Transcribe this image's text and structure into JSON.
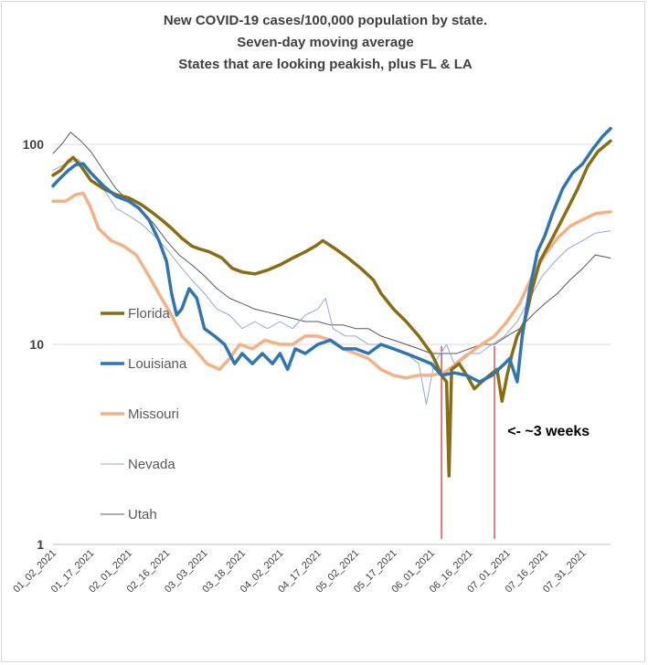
{
  "chart_data": {
    "type": "line",
    "title": [
      "New COVID-19 cases/100,000 population by state.",
      "Seven-day moving average",
      "States that are looking peakish, plus FL & LA"
    ],
    "y_scale": "log",
    "ylim": [
      1,
      130
    ],
    "y_ticks": [
      {
        "value": 1,
        "label": "1"
      },
      {
        "value": 10,
        "label": "10"
      },
      {
        "value": 100,
        "label": "100"
      }
    ],
    "x_range": [
      "01_02_2021",
      "08_11_2021"
    ],
    "x_ticks": [
      "01_02_2021",
      "01_17_2021",
      "02_01_2021",
      "02_16_2021",
      "03_03_2021",
      "03_18_2021",
      "04_02_2021",
      "04_17_2021",
      "05_02_2021",
      "05_17_2021",
      "06_01_2021",
      "06_16_2021",
      "07_01_2021",
      "07_16_2021",
      "07_31_2021"
    ],
    "gridlines": "horizontal",
    "legend_position": "left-inside",
    "series": [
      {
        "name": "Florida",
        "color": "#8a6d10",
        "width": 3.5,
        "points": [
          [
            "01_02_2021",
            70
          ],
          [
            "01_05_2021",
            74
          ],
          [
            "01_08_2021",
            82
          ],
          [
            "01_10_2021",
            86
          ],
          [
            "01_13_2021",
            78
          ],
          [
            "01_17_2021",
            66
          ],
          [
            "01_22_2021",
            60
          ],
          [
            "01_27_2021",
            56
          ],
          [
            "02_01_2021",
            54
          ],
          [
            "02_06_2021",
            50
          ],
          [
            "02_10_2021",
            46
          ],
          [
            "02_14_2021",
            42
          ],
          [
            "02_18_2021",
            38
          ],
          [
            "02_22_2021",
            34
          ],
          [
            "02_26_2021",
            31
          ],
          [
            "03_01_2021",
            30
          ],
          [
            "03_05_2021",
            29
          ],
          [
            "03_10_2021",
            27
          ],
          [
            "03_14_2021",
            24
          ],
          [
            "03_18_2021",
            23
          ],
          [
            "03_23_2021",
            22.5
          ],
          [
            "03_28_2021",
            23.5
          ],
          [
            "04_02_2021",
            25
          ],
          [
            "04_07_2021",
            27
          ],
          [
            "04_12_2021",
            29
          ],
          [
            "04_16_2021",
            31
          ],
          [
            "04_19_2021",
            33
          ],
          [
            "04_24_2021",
            30
          ],
          [
            "04_29_2021",
            27
          ],
          [
            "05_04_2021",
            24
          ],
          [
            "05_09_2021",
            21
          ],
          [
            "05_12_2021",
            18
          ],
          [
            "05_17_2021",
            15
          ],
          [
            "05_22_2021",
            13
          ],
          [
            "05_27_2021",
            11
          ],
          [
            "06_01_2021",
            9
          ],
          [
            "06_03_2021",
            8
          ],
          [
            "06_05_2021",
            7
          ],
          [
            "06_07_2021",
            6.5
          ],
          [
            "06_08_2021",
            2.2
          ],
          [
            "06_09_2021",
            7.5
          ],
          [
            "06_12_2021",
            8
          ],
          [
            "06_15_2021",
            7
          ],
          [
            "06_18_2021",
            6
          ],
          [
            "06_21_2021",
            6.5
          ],
          [
            "06_24_2021",
            7
          ],
          [
            "06_27_2021",
            7.5
          ],
          [
            "06_29_2021",
            5.2
          ],
          [
            "07_01_2021",
            7
          ],
          [
            "07_03_2021",
            9
          ],
          [
            "07_05_2021",
            11
          ],
          [
            "07_08_2021",
            13
          ],
          [
            "07_11_2021",
            19
          ],
          [
            "07_14_2021",
            26
          ],
          [
            "07_19_2021",
            34
          ],
          [
            "07_24_2021",
            45
          ],
          [
            "07_29_2021",
            60
          ],
          [
            "08_02_2021",
            78
          ],
          [
            "08_06_2021",
            92
          ],
          [
            "08_11_2021",
            104
          ]
        ]
      },
      {
        "name": "Louisiana",
        "color": "#2e75b6",
        "width": 3.5,
        "points": [
          [
            "01_02_2021",
            62
          ],
          [
            "01_05_2021",
            68
          ],
          [
            "01_08_2021",
            74
          ],
          [
            "01_11_2021",
            79
          ],
          [
            "01_14_2021",
            80
          ],
          [
            "01_17_2021",
            72
          ],
          [
            "01_22_2021",
            62
          ],
          [
            "01_27_2021",
            55
          ],
          [
            "02_01_2021",
            52
          ],
          [
            "02_05_2021",
            48
          ],
          [
            "02_09_2021",
            42
          ],
          [
            "02_13_2021",
            33
          ],
          [
            "02_16_2021",
            26
          ],
          [
            "02_18_2021",
            18
          ],
          [
            "02_20_2021",
            14
          ],
          [
            "02_22_2021",
            15
          ],
          [
            "02_25_2021",
            19
          ],
          [
            "02_28_2021",
            17
          ],
          [
            "03_03_2021",
            12
          ],
          [
            "03_07_2021",
            11
          ],
          [
            "03_11_2021",
            10
          ],
          [
            "03_15_2021",
            8
          ],
          [
            "03_18_2021",
            9
          ],
          [
            "03_22_2021",
            8
          ],
          [
            "03_26_2021",
            9
          ],
          [
            "03_30_2021",
            8
          ],
          [
            "04_02_2021",
            9
          ],
          [
            "04_05_2021",
            7.5
          ],
          [
            "04_08_2021",
            9.5
          ],
          [
            "04_12_2021",
            9
          ],
          [
            "04_17_2021",
            10
          ],
          [
            "04_22_2021",
            10.5
          ],
          [
            "04_27_2021",
            9.5
          ],
          [
            "05_02_2021",
            9.5
          ],
          [
            "05_07_2021",
            9
          ],
          [
            "05_12_2021",
            10
          ],
          [
            "05_17_2021",
            9.5
          ],
          [
            "05_22_2021",
            9
          ],
          [
            "05_27_2021",
            8.5
          ],
          [
            "06_01_2021",
            8
          ],
          [
            "06_05_2021",
            7
          ],
          [
            "06_10_2021",
            7.2
          ],
          [
            "06_15_2021",
            7
          ],
          [
            "06_20_2021",
            6.5
          ],
          [
            "06_25_2021",
            7
          ],
          [
            "06_30_2021",
            8
          ],
          [
            "07_02_2021",
            8.5
          ],
          [
            "07_05_2021",
            6.5
          ],
          [
            "07_07_2021",
            11
          ],
          [
            "07_10_2021",
            19
          ],
          [
            "07_13_2021",
            29
          ],
          [
            "07_16_2021",
            35
          ],
          [
            "07_19_2021",
            45
          ],
          [
            "07_23_2021",
            60
          ],
          [
            "07_27_2021",
            72
          ],
          [
            "07_31_2021",
            80
          ],
          [
            "08_04_2021",
            95
          ],
          [
            "08_08_2021",
            110
          ],
          [
            "08_11_2021",
            120
          ]
        ]
      },
      {
        "name": "Missouri",
        "color": "#f4b183",
        "width": 3.5,
        "points": [
          [
            "01_02_2021",
            52
          ],
          [
            "01_07_2021",
            52
          ],
          [
            "01_11_2021",
            56
          ],
          [
            "01_14_2021",
            57
          ],
          [
            "01_17_2021",
            48
          ],
          [
            "01_20_2021",
            38
          ],
          [
            "01_25_2021",
            33
          ],
          [
            "01_30_2021",
            31
          ],
          [
            "02_04_2021",
            28
          ],
          [
            "02_09_2021",
            22
          ],
          [
            "02_14_2021",
            17
          ],
          [
            "02_18_2021",
            14
          ],
          [
            "02_22_2021",
            11
          ],
          [
            "02_27_2021",
            9.5
          ],
          [
            "03_04_2021",
            8
          ],
          [
            "03_09_2021",
            7.5
          ],
          [
            "03_13_2021",
            8.5
          ],
          [
            "03_17_2021",
            10
          ],
          [
            "03_22_2021",
            9.5
          ],
          [
            "03_27_2021",
            10.5
          ],
          [
            "04_02_2021",
            10
          ],
          [
            "04_07_2021",
            10
          ],
          [
            "04_12_2021",
            11
          ],
          [
            "04_17_2021",
            11
          ],
          [
            "04_22_2021",
            10.5
          ],
          [
            "04_27_2021",
            9.5
          ],
          [
            "05_02_2021",
            9
          ],
          [
            "05_07_2021",
            8.5
          ],
          [
            "05_12_2021",
            7.5
          ],
          [
            "05_17_2021",
            7
          ],
          [
            "05_22_2021",
            6.8
          ],
          [
            "05_27_2021",
            7
          ],
          [
            "06_01_2021",
            7
          ],
          [
            "06_06_2021",
            7.2
          ],
          [
            "06_11_2021",
            8
          ],
          [
            "06_16_2021",
            9
          ],
          [
            "06_21_2021",
            10
          ],
          [
            "06_26_2021",
            11
          ],
          [
            "07_01_2021",
            13
          ],
          [
            "07_06_2021",
            16
          ],
          [
            "07_11_2021",
            22
          ],
          [
            "07_16_2021",
            28
          ],
          [
            "07_21_2021",
            34
          ],
          [
            "07_26_2021",
            39
          ],
          [
            "07_31_2021",
            42
          ],
          [
            "08_05_2021",
            45
          ],
          [
            "08_11_2021",
            46
          ]
        ]
      },
      {
        "name": "Nevada",
        "color": "#8faadc",
        "width": 1,
        "points": [
          [
            "01_02_2021",
            74
          ],
          [
            "01_07_2021",
            80
          ],
          [
            "01_12_2021",
            84
          ],
          [
            "01_17_2021",
            72
          ],
          [
            "01_22_2021",
            60
          ],
          [
            "01_27_2021",
            48
          ],
          [
            "02_01_2021",
            44
          ],
          [
            "02_06_2021",
            40
          ],
          [
            "02_11_2021",
            35
          ],
          [
            "02_16_2021",
            30
          ],
          [
            "02_21_2021",
            25
          ],
          [
            "02_26_2021",
            21
          ],
          [
            "03_03_2021",
            18
          ],
          [
            "03_08_2021",
            15
          ],
          [
            "03_13_2021",
            14
          ],
          [
            "03_18_2021",
            12
          ],
          [
            "03_23_2021",
            13
          ],
          [
            "03_28_2021",
            12
          ],
          [
            "04_02_2021",
            13
          ],
          [
            "04_07_2021",
            12
          ],
          [
            "04_12_2021",
            14
          ],
          [
            "04_17_2021",
            15
          ],
          [
            "04_20_2021",
            17
          ],
          [
            "04_23_2021",
            12
          ],
          [
            "04_28_2021",
            11
          ],
          [
            "05_02_2021",
            11
          ],
          [
            "05_07_2021",
            10
          ],
          [
            "05_12_2021",
            10
          ],
          [
            "05_17_2021",
            9.5
          ],
          [
            "05_22_2021",
            9
          ],
          [
            "05_27_2021",
            8
          ],
          [
            "05_30_2021",
            5
          ],
          [
            "06_02_2021",
            8
          ],
          [
            "06_07_2021",
            10
          ],
          [
            "06_10_2021",
            8
          ],
          [
            "06_15_2021",
            9
          ],
          [
            "06_20_2021",
            9
          ],
          [
            "06_25_2021",
            10
          ],
          [
            "06_30_2021",
            11
          ],
          [
            "07_05_2021",
            13
          ],
          [
            "07_10_2021",
            17
          ],
          [
            "07_15_2021",
            22
          ],
          [
            "07_20_2021",
            26
          ],
          [
            "07_25_2021",
            30
          ],
          [
            "07_31_2021",
            33
          ],
          [
            "08_05_2021",
            36
          ],
          [
            "08_11_2021",
            37
          ]
        ]
      },
      {
        "name": "Utah",
        "color": "#595959",
        "width": 1,
        "points": [
          [
            "01_02_2021",
            90
          ],
          [
            "01_06_2021",
            102
          ],
          [
            "01_09_2021",
            115
          ],
          [
            "01_13_2021",
            104
          ],
          [
            "01_17_2021",
            92
          ],
          [
            "01_22_2021",
            74
          ],
          [
            "01_27_2021",
            60
          ],
          [
            "02_01_2021",
            52
          ],
          [
            "02_06_2021",
            47
          ],
          [
            "02_11_2021",
            40
          ],
          [
            "02_16_2021",
            33
          ],
          [
            "02_21_2021",
            28
          ],
          [
            "02_26_2021",
            25
          ],
          [
            "03_03_2021",
            22
          ],
          [
            "03_08_2021",
            19
          ],
          [
            "03_13_2021",
            17
          ],
          [
            "03_18_2021",
            16
          ],
          [
            "03_23_2021",
            15
          ],
          [
            "03_28_2021",
            14.5
          ],
          [
            "04_02_2021",
            14
          ],
          [
            "04_07_2021",
            13.5
          ],
          [
            "04_12_2021",
            13
          ],
          [
            "04_17_2021",
            13
          ],
          [
            "04_22_2021",
            12.5
          ],
          [
            "04_27_2021",
            12.5
          ],
          [
            "05_02_2021",
            12
          ],
          [
            "05_07_2021",
            12
          ],
          [
            "05_12_2021",
            11
          ],
          [
            "05_17_2021",
            10.5
          ],
          [
            "05_22_2021",
            10
          ],
          [
            "05_27_2021",
            9.5
          ],
          [
            "06_01_2021",
            9
          ],
          [
            "06_06_2021",
            9
          ],
          [
            "06_11_2021",
            9
          ],
          [
            "06_16_2021",
            9.5
          ],
          [
            "06_21_2021",
            10
          ],
          [
            "06_26_2021",
            10
          ],
          [
            "07_01_2021",
            11
          ],
          [
            "07_06_2021",
            12
          ],
          [
            "07_11_2021",
            14
          ],
          [
            "07_16_2021",
            16
          ],
          [
            "07_21_2021",
            18
          ],
          [
            "07_26_2021",
            21
          ],
          [
            "07_31_2021",
            24
          ],
          [
            "08_05_2021",
            28
          ],
          [
            "08_11_2021",
            27
          ]
        ]
      }
    ],
    "vertical_markers": [
      {
        "x": "06_05_2021",
        "color": "#c00000"
      },
      {
        "x": "06_26_2021",
        "color": "#c00000"
      }
    ],
    "annotations": [
      {
        "text": "<- ~3 weeks",
        "x": "06_29_2021",
        "y": 3.5
      }
    ]
  }
}
